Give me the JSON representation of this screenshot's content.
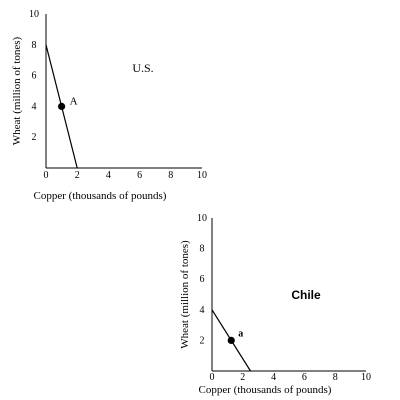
{
  "chart_data": [
    {
      "type": "line",
      "title": "U.S.",
      "xlabel": "Copper (thousands of pounds)",
      "ylabel": "Wheat (million of tones)",
      "xlim": [
        0,
        10
      ],
      "ylim": [
        0,
        10
      ],
      "x_ticks": [
        "0",
        "2",
        "4",
        "6",
        "8",
        "10"
      ],
      "y_ticks": [
        "2",
        "4",
        "6",
        "8",
        "10"
      ],
      "grid": false,
      "series": [
        {
          "x": [
            0,
            2
          ],
          "y": [
            8,
            0
          ]
        }
      ],
      "points": [
        {
          "label": "A",
          "x": 1,
          "y": 4
        }
      ]
    },
    {
      "type": "line",
      "title": "Chile",
      "xlabel": "Copper (thousands of pounds)",
      "ylabel": "Wheat (million of tones)",
      "xlim": [
        0,
        10
      ],
      "ylim": [
        0,
        10
      ],
      "x_ticks": [
        "0",
        "2",
        "4",
        "6",
        "8",
        "10"
      ],
      "y_ticks": [
        "2",
        "4",
        "6",
        "8",
        "10"
      ],
      "grid": false,
      "series": [
        {
          "x": [
            0,
            2.5
          ],
          "y": [
            4,
            0
          ]
        }
      ],
      "points": [
        {
          "label": "a",
          "x": 1.25,
          "y": 2
        }
      ]
    }
  ]
}
